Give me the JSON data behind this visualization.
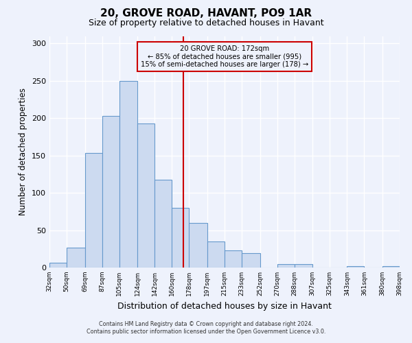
{
  "title": "20, GROVE ROAD, HAVANT, PO9 1AR",
  "subtitle": "Size of property relative to detached houses in Havant",
  "xlabel": "Distribution of detached houses by size in Havant",
  "ylabel": "Number of detached properties",
  "bar_left_edges": [
    32,
    50,
    69,
    87,
    105,
    124,
    142,
    160,
    178,
    197,
    215,
    233,
    252,
    270,
    288,
    307,
    325,
    343,
    361,
    380
  ],
  "bar_widths": [
    18,
    19,
    18,
    18,
    19,
    18,
    18,
    18,
    19,
    18,
    18,
    19,
    18,
    18,
    19,
    18,
    18,
    18,
    19,
    18
  ],
  "bar_heights": [
    6,
    27,
    153,
    203,
    250,
    193,
    118,
    80,
    60,
    35,
    23,
    19,
    0,
    5,
    5,
    0,
    0,
    2,
    0,
    2
  ],
  "bar_facecolor": "#ccdaf0",
  "bar_edgecolor": "#6699cc",
  "property_line_x": 172,
  "property_line_color": "#cc0000",
  "annotation_title": "20 GROVE ROAD: 172sqm",
  "annotation_line1": "← 85% of detached houses are smaller (995)",
  "annotation_line2": "15% of semi-detached houses are larger (178) →",
  "annotation_box_color": "#cc0000",
  "ylim": [
    0,
    310
  ],
  "xlim": [
    32,
    398
  ],
  "tick_labels": [
    "32sqm",
    "50sqm",
    "69sqm",
    "87sqm",
    "105sqm",
    "124sqm",
    "142sqm",
    "160sqm",
    "178sqm",
    "197sqm",
    "215sqm",
    "233sqm",
    "252sqm",
    "270sqm",
    "288sqm",
    "307sqm",
    "325sqm",
    "343sqm",
    "361sqm",
    "380sqm",
    "398sqm"
  ],
  "tick_positions": [
    32,
    50,
    69,
    87,
    105,
    124,
    142,
    160,
    178,
    197,
    215,
    233,
    252,
    270,
    288,
    307,
    325,
    343,
    361,
    380,
    398
  ],
  "yticks": [
    0,
    50,
    100,
    150,
    200,
    250,
    300
  ],
  "footer_line1": "Contains HM Land Registry data © Crown copyright and database right 2024.",
  "footer_line2": "Contains public sector information licensed under the Open Government Licence v3.0.",
  "bg_color": "#eef2fc",
  "grid_color": "#ffffff"
}
